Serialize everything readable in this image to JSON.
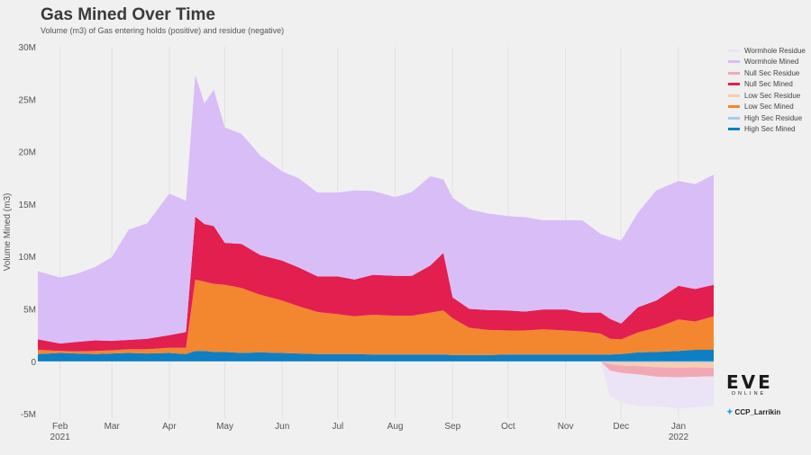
{
  "header": {
    "title": "Gas Mined Over Time",
    "subtitle": "Volume (m3) of Gas entering holds (positive) and residue (negative)"
  },
  "brand": {
    "logo": "EVE",
    "logo_sub": "ONLINE",
    "twitter_icon": "twitter-bird-icon",
    "handle": "CCP_Larrikin"
  },
  "chart_data": {
    "type": "area",
    "title": "Gas Mined Over Time",
    "subtitle": "Volume (m3) of Gas entering holds (positive) and residue (negative)",
    "ylabel": "Volume Mined (m3)",
    "xlabel": "",
    "ylim": [
      -5500000,
      30000000
    ],
    "yticks": [
      -5000000,
      0,
      5000000,
      10000000,
      15000000,
      20000000,
      25000000,
      30000000
    ],
    "ytick_labels": [
      "-5M",
      "0",
      "5M",
      "10M",
      "15M",
      "20M",
      "25M",
      "30M"
    ],
    "xlim": [
      "2021-01-20",
      "2022-01-20"
    ],
    "xticks": [
      {
        "date": "2021-02-01",
        "label": "Feb",
        "sub": "2021"
      },
      {
        "date": "2021-03-01",
        "label": "Mar",
        "sub": ""
      },
      {
        "date": "2021-04-01",
        "label": "Apr",
        "sub": ""
      },
      {
        "date": "2021-05-01",
        "label": "May",
        "sub": ""
      },
      {
        "date": "2021-06-01",
        "label": "Jun",
        "sub": ""
      },
      {
        "date": "2021-07-01",
        "label": "Jul",
        "sub": ""
      },
      {
        "date": "2021-08-01",
        "label": "Aug",
        "sub": ""
      },
      {
        "date": "2021-09-01",
        "label": "Sep",
        "sub": ""
      },
      {
        "date": "2021-10-01",
        "label": "Oct",
        "sub": ""
      },
      {
        "date": "2021-11-01",
        "label": "Nov",
        "sub": ""
      },
      {
        "date": "2021-12-01",
        "label": "Dec",
        "sub": ""
      },
      {
        "date": "2022-01-01",
        "label": "Jan",
        "sub": "2022"
      }
    ],
    "grid": "vertical",
    "legend_position": "right",
    "x": [
      "2021-01-20",
      "2021-02-01",
      "2021-02-10",
      "2021-02-20",
      "2021-03-01",
      "2021-03-10",
      "2021-03-20",
      "2021-04-01",
      "2021-04-10",
      "2021-04-15",
      "2021-04-20",
      "2021-04-25",
      "2021-05-01",
      "2021-05-10",
      "2021-05-20",
      "2021-06-01",
      "2021-06-10",
      "2021-06-20",
      "2021-07-01",
      "2021-07-10",
      "2021-07-20",
      "2021-08-01",
      "2021-08-10",
      "2021-08-20",
      "2021-08-27",
      "2021-09-01",
      "2021-09-10",
      "2021-09-20",
      "2021-10-01",
      "2021-10-10",
      "2021-10-20",
      "2021-11-01",
      "2021-11-10",
      "2021-11-20",
      "2021-11-25",
      "2021-12-01",
      "2021-12-10",
      "2021-12-20",
      "2022-01-01",
      "2022-01-10",
      "2022-01-20"
    ],
    "series": [
      {
        "name": "High Sec Mined",
        "color": "#0f7fc4",
        "values": [
          700000,
          800000,
          750000,
          700000,
          750000,
          800000,
          750000,
          800000,
          700000,
          1000000,
          1000000,
          900000,
          900000,
          800000,
          850000,
          800000,
          750000,
          700000,
          700000,
          700000,
          650000,
          650000,
          650000,
          650000,
          650000,
          600000,
          600000,
          600000,
          650000,
          650000,
          650000,
          650000,
          650000,
          650000,
          650000,
          700000,
          850000,
          900000,
          1000000,
          1100000,
          1100000
        ]
      },
      {
        "name": "Low Sec Mined",
        "color": "#f2872f",
        "values": [
          400000,
          200000,
          200000,
          300000,
          300000,
          350000,
          400000,
          500000,
          600000,
          6800000,
          6600000,
          6500000,
          6400000,
          6200000,
          5500000,
          5000000,
          4500000,
          4000000,
          3800000,
          3600000,
          3800000,
          3700000,
          3700000,
          4000000,
          4200000,
          3500000,
          2600000,
          2400000,
          2300000,
          2300000,
          2400000,
          2300000,
          2200000,
          2000000,
          1500000,
          1400000,
          1900000,
          2300000,
          3000000,
          2700000,
          3200000
        ]
      },
      {
        "name": "Null Sec Mined",
        "color": "#e21f4f",
        "values": [
          1000000,
          700000,
          900000,
          1000000,
          900000,
          900000,
          1000000,
          1200000,
          1500000,
          6000000,
          5500000,
          5500000,
          4000000,
          4200000,
          3800000,
          3800000,
          3700000,
          3400000,
          3600000,
          3500000,
          3800000,
          3800000,
          3800000,
          4500000,
          5500000,
          2000000,
          1800000,
          1900000,
          1900000,
          1800000,
          1900000,
          2000000,
          1800000,
          2000000,
          1900000,
          1500000,
          2400000,
          2600000,
          3200000,
          3100000,
          3000000
        ]
      },
      {
        "name": "Wormhole Mined",
        "color": "#d9bdf7",
        "values": [
          6500000,
          6300000,
          6500000,
          7000000,
          8000000,
          10500000,
          11000000,
          13500000,
          12500000,
          13500000,
          11500000,
          13000000,
          11000000,
          10500000,
          9500000,
          8500000,
          8500000,
          8000000,
          8000000,
          8500000,
          8000000,
          7500000,
          8000000,
          8500000,
          7000000,
          9500000,
          9500000,
          9200000,
          9000000,
          9000000,
          8500000,
          8500000,
          8800000,
          7500000,
          7800000,
          7900000,
          9000000,
          10500000,
          10000000,
          10000000,
          10500000
        ]
      },
      {
        "name": "High Sec Residue",
        "color": "#a8cde6",
        "values": [
          0,
          0,
          0,
          0,
          0,
          0,
          0,
          0,
          0,
          0,
          0,
          0,
          0,
          0,
          0,
          0,
          0,
          0,
          0,
          0,
          0,
          0,
          0,
          0,
          0,
          0,
          0,
          0,
          0,
          0,
          0,
          0,
          0,
          0,
          -80000,
          -100000,
          -100000,
          -110000,
          -120000,
          -120000,
          -130000
        ]
      },
      {
        "name": "Low Sec Residue",
        "color": "#f8cdb0",
        "values": [
          0,
          0,
          0,
          0,
          0,
          0,
          0,
          0,
          0,
          0,
          0,
          0,
          0,
          0,
          0,
          0,
          0,
          0,
          0,
          0,
          0,
          0,
          0,
          0,
          0,
          0,
          0,
          0,
          0,
          0,
          0,
          0,
          0,
          0,
          -200000,
          -300000,
          -350000,
          -450000,
          -500000,
          -450000,
          -500000
        ]
      },
      {
        "name": "Null Sec Residue",
        "color": "#f2a7b5",
        "values": [
          0,
          0,
          0,
          0,
          0,
          0,
          0,
          0,
          0,
          0,
          0,
          0,
          0,
          0,
          0,
          0,
          0,
          0,
          0,
          0,
          0,
          0,
          0,
          0,
          0,
          0,
          0,
          0,
          0,
          0,
          0,
          0,
          0,
          0,
          -600000,
          -700000,
          -800000,
          -900000,
          -900000,
          -900000,
          -800000
        ]
      },
      {
        "name": "Wormhole Residue",
        "color": "#ebe3f6",
        "values": [
          0,
          0,
          0,
          0,
          0,
          0,
          0,
          0,
          0,
          0,
          0,
          0,
          0,
          0,
          0,
          0,
          0,
          0,
          0,
          0,
          0,
          0,
          0,
          0,
          0,
          0,
          0,
          0,
          0,
          0,
          0,
          0,
          0,
          0,
          -2500000,
          -2800000,
          -3000000,
          -2800000,
          -3000000,
          -2900000,
          -2800000
        ]
      }
    ],
    "legend": [
      {
        "name": "Wormhole Residue",
        "color": "#ebe3f6"
      },
      {
        "name": "Wormhole Mined",
        "color": "#d9bdf7"
      },
      {
        "name": "Null Sec Residue",
        "color": "#f2a7b5"
      },
      {
        "name": "Null Sec Mined",
        "color": "#e21f4f"
      },
      {
        "name": "Low Sec Residue",
        "color": "#f8cdb0"
      },
      {
        "name": "Low Sec Mined",
        "color": "#f2872f"
      },
      {
        "name": "High Sec Residue",
        "color": "#a8cde6"
      },
      {
        "name": "High Sec Mined",
        "color": "#0f7fc4"
      }
    ]
  }
}
